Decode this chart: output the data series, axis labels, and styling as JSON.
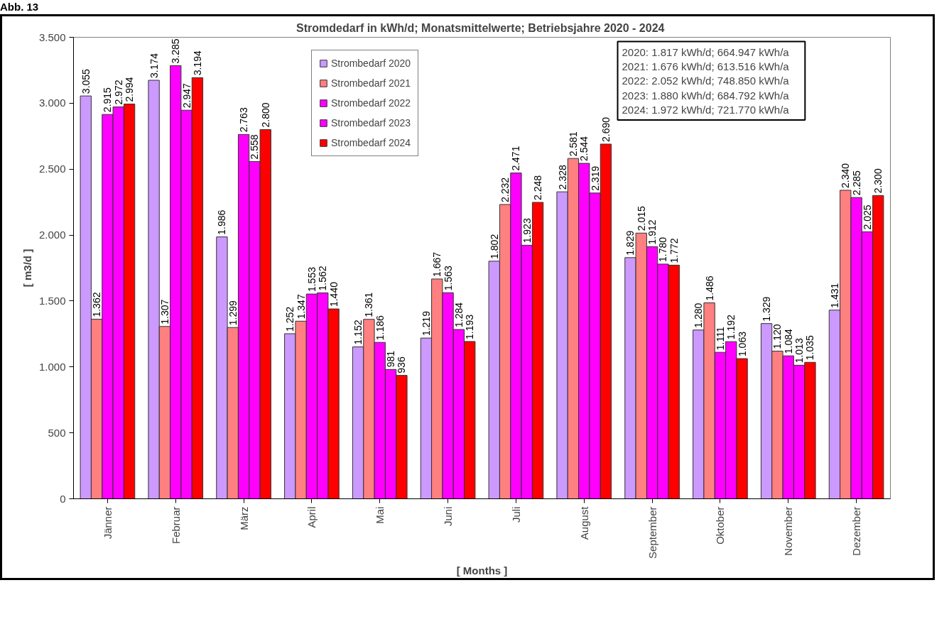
{
  "chart_data": {
    "type": "bar",
    "title": "Stromdedarf in kWh/d; Monatsmittelwerte;  Betriebsjahre 2020 - 2024",
    "xlabel": "[ Months ]",
    "ylabel": "[ m3/d ]",
    "annotations": [
      "Abb. 13",
      "2020: 1.817 kWh/d;     664.947 kWh/a\n2021: 1.676 kWh/d;     613.516 kWh/a\n2022: 2.052 kWh/d;     748.850 kWh/a\n2023: 1.880 kWh/d;     684.792 kWh/a\n2024: 1.972 kWh/d;     721.770 kWh/a"
    ],
    "categories": [
      "Jänner",
      "Februar",
      "März",
      "April",
      "Mai",
      "Juni",
      "Juli",
      "August",
      "September",
      "Oktober",
      "November",
      "Dezember"
    ],
    "series": [
      {
        "name": "Strombedarf 2020",
        "color": "#cc99ff",
        "values": [
          3055,
          3174,
          1986,
          1252,
          1152,
          1219,
          1802,
          2328,
          1829,
          1280,
          1329,
          1431
        ],
        "value_labels": [
          "3.055",
          "3.174",
          "1.986",
          "1.252",
          "1.152",
          "1.219",
          "1.802",
          "2.328",
          "1.829",
          "1.280",
          "1.329",
          "1.431"
        ]
      },
      {
        "name": "Strombedarf 2021",
        "color": "#ff8080",
        "values": [
          1362,
          1307,
          1299,
          1347,
          1361,
          1667,
          2232,
          2581,
          2015,
          1486,
          1120,
          2340
        ],
        "value_labels": [
          "1.362",
          "1.307",
          "1.299",
          "1.347",
          "1.361",
          "1.667",
          "2.232",
          "2.581",
          "2.015",
          "1.486",
          "1.120",
          "2.340"
        ]
      },
      {
        "name": "Strombedarf 2022",
        "color": "#ff00ff",
        "values": [
          2915,
          3285,
          2763,
          1553,
          1186,
          1563,
          2471,
          2544,
          1912,
          1111,
          1084,
          2285
        ],
        "value_labels": [
          "2.915",
          "3.285",
          "2.763",
          "1.553",
          "1.186",
          "1.563",
          "2.471",
          "2.544",
          "1.912",
          "1.111",
          "1.084",
          "2.285"
        ]
      },
      {
        "name": "Strombedarf 2023",
        "color": "#ff00ff",
        "values": [
          2972,
          2947,
          2558,
          1562,
          981,
          1284,
          1923,
          2319,
          1780,
          1192,
          1013,
          2025
        ],
        "value_labels": [
          "2.972",
          "2.947",
          "2.558",
          "1.562",
          "981",
          "1.284",
          "1.923",
          "2.319",
          "1.780",
          "1.192",
          "1.013",
          "2.025"
        ]
      },
      {
        "name": "Strombedarf 2024",
        "color": "#ff0000",
        "values": [
          2994,
          3194,
          2800,
          1440,
          936,
          1193,
          2248,
          2690,
          1772,
          1063,
          1035,
          2300
        ],
        "value_labels": [
          "2.994",
          "3.194",
          "2.800",
          "1.440",
          "936",
          "1.193",
          "2.248",
          "2.690",
          "1.772",
          "1.063",
          "1.035",
          "2.300"
        ]
      }
    ],
    "ylim": [
      0,
      3500
    ],
    "yticks": [
      0,
      {
        "value": 500,
        "label": "500"
      },
      {
        "value": 1000,
        "label": "1.000"
      },
      {
        "value": 1500,
        "label": "1.500"
      },
      {
        "value": 2000,
        "label": "2.000"
      },
      {
        "value": 2500,
        "label": "2.500"
      },
      {
        "value": 3000,
        "label": "3.000"
      },
      {
        "value": 3500,
        "label": "3.500"
      }
    ],
    "grid": false,
    "legend": "top"
  }
}
